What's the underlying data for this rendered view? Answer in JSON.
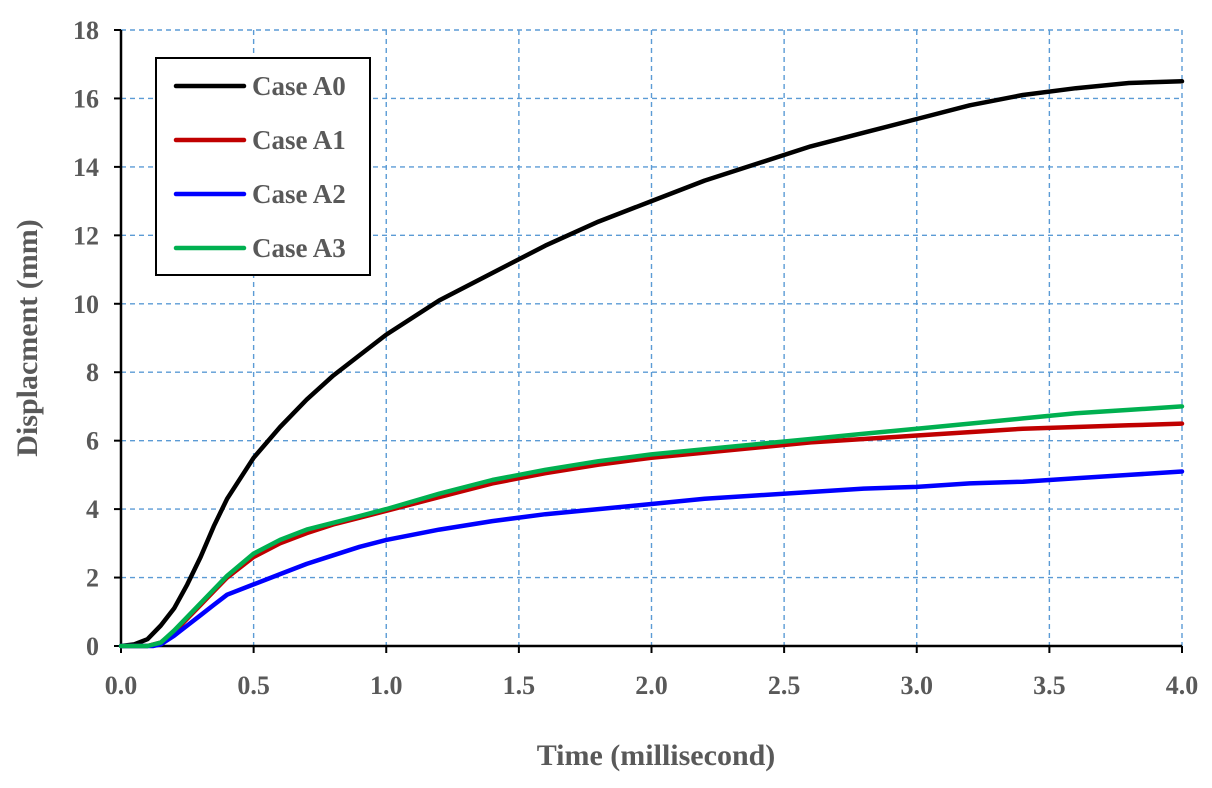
{
  "chart_data": {
    "type": "line",
    "title": "",
    "xlabel": "Time (millisecond)",
    "ylabel": "Displacment (mm)",
    "xlim": [
      0.0,
      4.0
    ],
    "ylim": [
      0,
      18
    ],
    "xticks": [
      0.0,
      0.5,
      1.0,
      1.5,
      2.0,
      2.5,
      3.0,
      3.5,
      4.0
    ],
    "xtick_labels": [
      "0.0",
      "0.5",
      "1.0",
      "1.5",
      "2.0",
      "2.5",
      "3.0",
      "3.5",
      "4.0"
    ],
    "yticks": [
      0,
      2,
      4,
      6,
      8,
      10,
      12,
      14,
      16,
      18
    ],
    "ytick_labels": [
      "0",
      "2",
      "4",
      "6",
      "8",
      "10",
      "12",
      "14",
      "16",
      "18"
    ],
    "grid": true,
    "legend_position": "top-left",
    "series": [
      {
        "name": "Case A0",
        "color": "#000000",
        "x": [
          0,
          0.05,
          0.1,
          0.15,
          0.2,
          0.25,
          0.3,
          0.35,
          0.4,
          0.5,
          0.6,
          0.7,
          0.8,
          0.9,
          1.0,
          1.2,
          1.4,
          1.6,
          1.8,
          2.0,
          2.2,
          2.4,
          2.6,
          2.8,
          3.0,
          3.2,
          3.4,
          3.6,
          3.8,
          4.0
        ],
        "y": [
          0,
          0.05,
          0.2,
          0.6,
          1.1,
          1.8,
          2.6,
          3.5,
          4.3,
          5.5,
          6.4,
          7.2,
          7.9,
          8.5,
          9.1,
          10.1,
          10.9,
          11.7,
          12.4,
          13.0,
          13.6,
          14.1,
          14.6,
          15.0,
          15.4,
          15.8,
          16.1,
          16.3,
          16.45,
          16.5
        ]
      },
      {
        "name": "Case A1",
        "color": "#c00000",
        "x": [
          0,
          0.1,
          0.15,
          0.2,
          0.25,
          0.3,
          0.35,
          0.4,
          0.5,
          0.6,
          0.7,
          0.8,
          0.9,
          1.0,
          1.2,
          1.4,
          1.6,
          1.8,
          2.0,
          2.2,
          2.4,
          2.6,
          2.8,
          3.0,
          3.2,
          3.4,
          3.6,
          3.8,
          4.0
        ],
        "y": [
          0,
          0,
          0.1,
          0.4,
          0.8,
          1.2,
          1.6,
          2.0,
          2.6,
          3.0,
          3.3,
          3.55,
          3.75,
          3.95,
          4.35,
          4.75,
          5.05,
          5.3,
          5.5,
          5.65,
          5.8,
          5.95,
          6.05,
          6.15,
          6.25,
          6.35,
          6.4,
          6.45,
          6.5
        ]
      },
      {
        "name": "Case A2",
        "color": "#0000ff",
        "x": [
          0,
          0.12,
          0.15,
          0.2,
          0.25,
          0.3,
          0.35,
          0.4,
          0.5,
          0.6,
          0.7,
          0.8,
          0.9,
          1.0,
          1.2,
          1.4,
          1.6,
          1.8,
          2.0,
          2.2,
          2.4,
          2.6,
          2.8,
          3.0,
          3.2,
          3.4,
          3.6,
          3.8,
          4.0
        ],
        "y": [
          0,
          0,
          0.05,
          0.3,
          0.6,
          0.9,
          1.2,
          1.5,
          1.8,
          2.1,
          2.4,
          2.65,
          2.9,
          3.1,
          3.4,
          3.65,
          3.85,
          4.0,
          4.15,
          4.3,
          4.4,
          4.5,
          4.6,
          4.65,
          4.75,
          4.8,
          4.9,
          5.0,
          5.1
        ]
      },
      {
        "name": "Case A3",
        "color": "#00b050",
        "x": [
          0,
          0.1,
          0.15,
          0.2,
          0.25,
          0.3,
          0.35,
          0.4,
          0.5,
          0.6,
          0.7,
          0.8,
          0.9,
          1.0,
          1.2,
          1.4,
          1.6,
          1.8,
          2.0,
          2.2,
          2.4,
          2.6,
          2.8,
          3.0,
          3.2,
          3.4,
          3.6,
          3.8,
          4.0
        ],
        "y": [
          0,
          0,
          0.1,
          0.45,
          0.85,
          1.25,
          1.65,
          2.05,
          2.7,
          3.1,
          3.4,
          3.6,
          3.8,
          4.0,
          4.45,
          4.85,
          5.15,
          5.4,
          5.6,
          5.75,
          5.9,
          6.05,
          6.2,
          6.35,
          6.5,
          6.65,
          6.8,
          6.9,
          7.0
        ]
      }
    ]
  }
}
